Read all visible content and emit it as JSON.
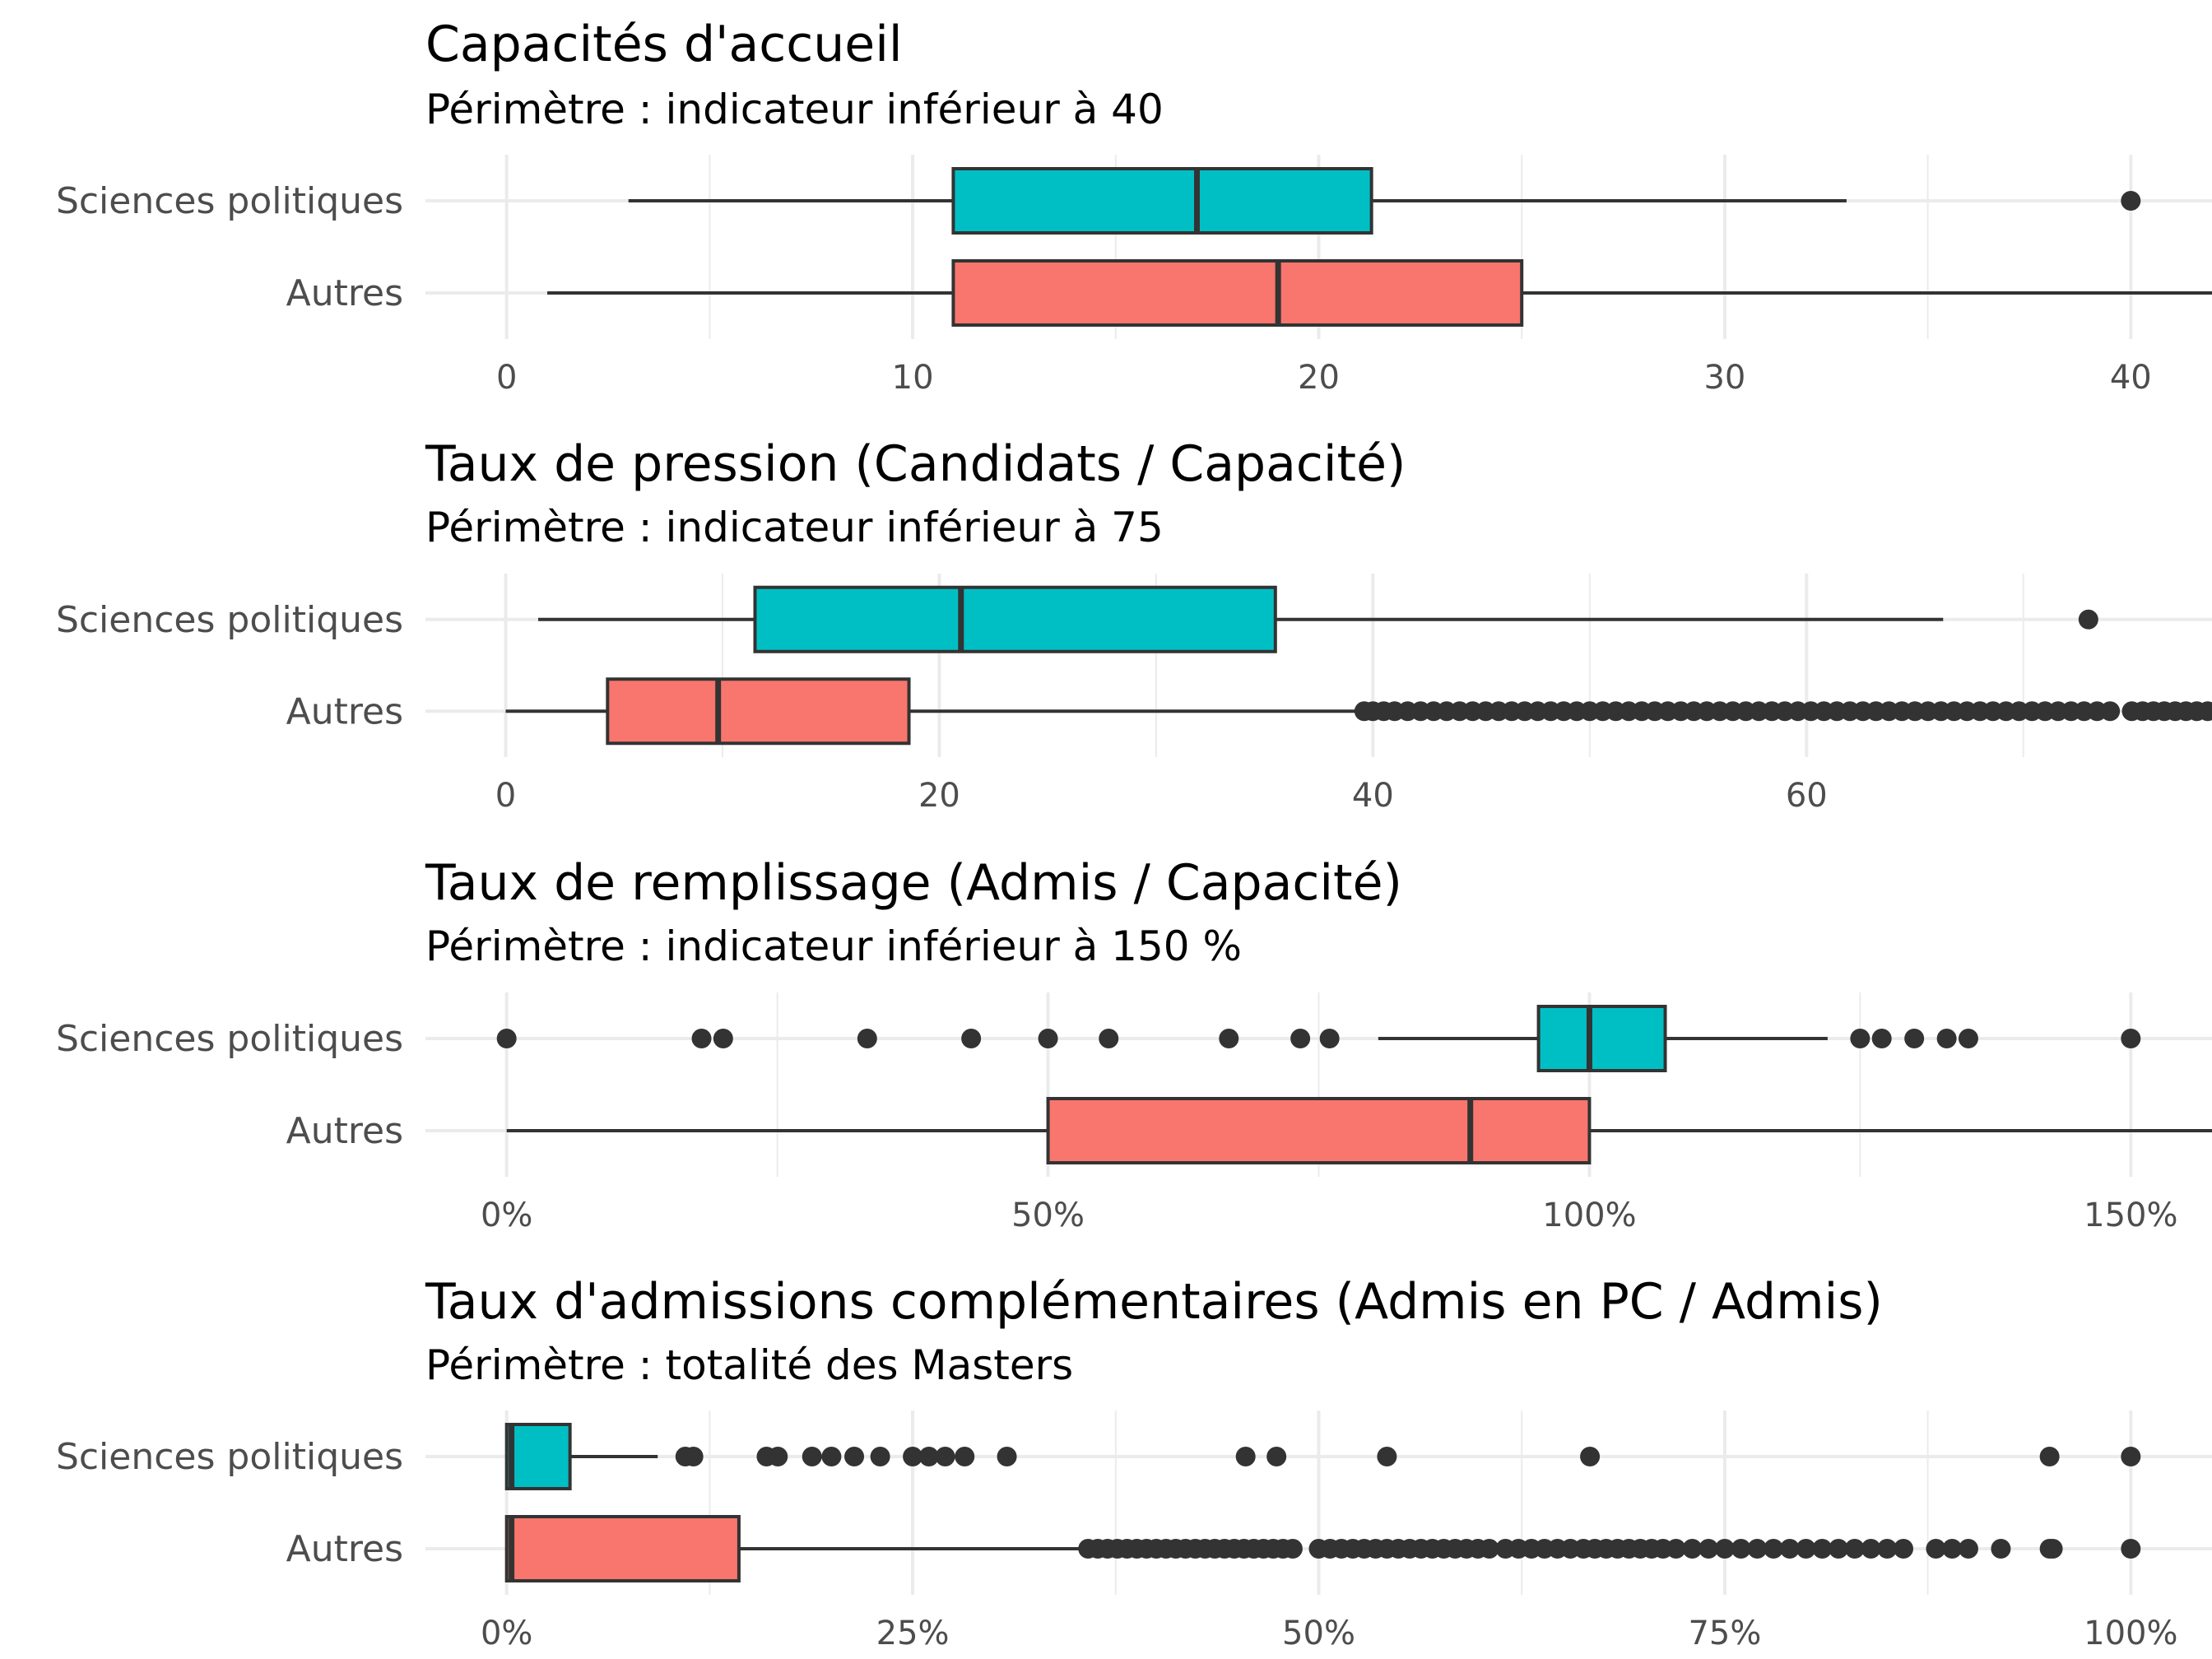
{
  "colors": {
    "sciences_politiques": "#00BFC4",
    "autres": "#F8766D",
    "ink": "#333333"
  },
  "chart_data": [
    {
      "type": "boxplot",
      "title": "Capacités d'accueil",
      "subtitle": "Périmètre : indicateur inférieur à 40",
      "categories": [
        "Sciences politiques",
        "Autres"
      ],
      "xlim": [
        -2,
        42
      ],
      "x_ticks": [
        0,
        10,
        20,
        30,
        40
      ],
      "x_tick_labels": [
        "0",
        "10",
        "20",
        "30",
        "40"
      ],
      "x_minor": [
        5,
        15,
        25,
        35
      ],
      "grid": true,
      "series": [
        {
          "name": "Sciences politiques",
          "whisker_low": 3,
          "q1": 11,
          "median": 17,
          "q3": 21.3,
          "whisker_high": 33,
          "outliers": [
            40
          ]
        },
        {
          "name": "Autres",
          "whisker_low": 1,
          "q1": 11,
          "median": 19,
          "q3": 25,
          "whisker_high": 42,
          "outliers": []
        }
      ]
    },
    {
      "type": "boxplot",
      "title": "Taux de pression (Candidats / Capacité)",
      "subtitle": "Périmètre : indicateur inférieur à 75",
      "categories": [
        "Sciences politiques",
        "Autres"
      ],
      "xlim": [
        -3.7,
        78.7
      ],
      "x_ticks": [
        0,
        20,
        40,
        60
      ],
      "x_tick_labels": [
        "0",
        "20",
        "40",
        "60"
      ],
      "x_minor": [
        10,
        30,
        50,
        70
      ],
      "grid": true,
      "series": [
        {
          "name": "Sciences politiques",
          "whisker_low": 1.5,
          "q1": 11.5,
          "median": 21,
          "q3": 35.5,
          "whisker_high": 66.3,
          "outliers": [
            73
          ]
        },
        {
          "name": "Autres",
          "whisker_low": 0,
          "q1": 4.7,
          "median": 9.8,
          "q3": 18.6,
          "whisker_high": 39.4,
          "outliers": [
            39.6,
            40,
            40.5,
            41,
            41.6,
            42.2,
            42.8,
            43.4,
            44,
            44.6,
            45.2,
            45.8,
            46.4,
            47,
            47.6,
            48.2,
            48.8,
            49.4,
            50,
            50.6,
            51.2,
            51.8,
            52.4,
            53,
            53.6,
            54.2,
            54.8,
            55.4,
            56,
            56.6,
            57.2,
            57.8,
            58.4,
            59,
            59.6,
            60.2,
            60.8,
            61.4,
            62,
            62.6,
            63.2,
            63.8,
            64.4,
            65,
            65.6,
            66.2,
            66.8,
            67.4,
            68,
            68.6,
            69.2,
            69.8,
            70.4,
            71,
            71.6,
            72.2,
            72.8,
            73.4,
            74,
            75,
            75.5,
            76,
            76.5,
            77,
            77.5,
            78,
            78.5
          ]
        }
      ]
    },
    {
      "type": "boxplot",
      "title": "Taux de remplissage (Admis / Capacité)",
      "subtitle": "Périmètre : indicateur inférieur à 150 %",
      "categories": [
        "Sciences politiques",
        "Autres"
      ],
      "xlim": [
        -7.5,
        157.5
      ],
      "x_ticks": [
        0,
        50,
        100,
        150
      ],
      "x_tick_labels": [
        "0%",
        "50%",
        "100%",
        "150%"
      ],
      "x_minor": [
        25,
        75,
        125
      ],
      "grid": true,
      "series": [
        {
          "name": "Sciences politiques",
          "whisker_low": 80.5,
          "q1": 95.3,
          "median": 100,
          "q3": 107,
          "whisker_high": 122,
          "outliers": [
            0,
            18,
            20,
            33.3,
            42.9,
            50,
            55.6,
            66.7,
            73.3,
            76,
            125,
            127,
            130,
            133,
            135,
            150
          ]
        },
        {
          "name": "Autres",
          "whisker_low": 0,
          "q1": 50,
          "median": 89,
          "q3": 100,
          "whisker_high": 157.5,
          "outliers": []
        }
      ]
    },
    {
      "type": "boxplot",
      "title": "Taux d'admissions complémentaires (Admis en PC / Admis)",
      "subtitle": "Périmètre : totalité des Masters",
      "categories": [
        "Sciences politiques",
        "Autres"
      ],
      "xlim": [
        -5,
        105
      ],
      "x_ticks": [
        0,
        25,
        50,
        75,
        100
      ],
      "x_tick_labels": [
        "0%",
        "25%",
        "50%",
        "75%",
        "100%"
      ],
      "x_minor": [
        12.5,
        37.5,
        62.5,
        87.5
      ],
      "grid": true,
      "series": [
        {
          "name": "Sciences politiques",
          "whisker_low": 0,
          "q1": 0,
          "median": 0.3,
          "q3": 3.9,
          "whisker_high": 9.3,
          "outliers": [
            11,
            11.5,
            16,
            16.7,
            18.8,
            20,
            21.4,
            23,
            25,
            26,
            27,
            28.2,
            30.8,
            45.5,
            47.4,
            54.2,
            66.7,
            95,
            100
          ]
        },
        {
          "name": "Autres",
          "whisker_low": 0,
          "q1": 0,
          "median": 0.3,
          "q3": 14.3,
          "whisker_high": 35.6,
          "outliers": [
            35.8,
            36.4,
            37,
            37.6,
            38.2,
            38.8,
            39.4,
            40,
            40.6,
            41.2,
            41.8,
            42.4,
            43,
            43.6,
            44.2,
            44.8,
            45.4,
            46,
            46.6,
            47.2,
            47.8,
            48.4,
            50,
            50.7,
            51.4,
            52.1,
            52.8,
            53.5,
            54.2,
            54.9,
            55.6,
            56.3,
            57,
            57.7,
            58.4,
            59.1,
            59.8,
            60.5,
            61.5,
            62.3,
            63.1,
            63.9,
            64.7,
            65.5,
            66.3,
            67,
            67.7,
            68.4,
            69.1,
            69.8,
            70.5,
            71.2,
            72,
            73,
            74,
            75,
            76,
            77,
            78,
            79,
            80,
            81,
            82,
            83,
            84,
            85,
            86,
            88,
            89,
            90,
            92,
            95,
            95.2,
            100
          ]
        }
      ]
    }
  ]
}
